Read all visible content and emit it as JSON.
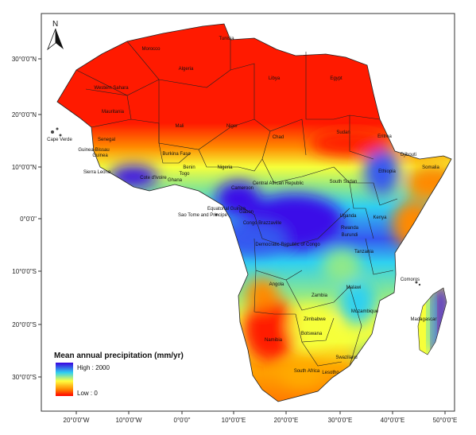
{
  "legend": {
    "title": "Mean annual precipitation (mm/yr)",
    "high_label": "High : 2000",
    "low_label": "Low : 0",
    "gradient_colors": [
      "#3a00e0",
      "#2fd0f0",
      "#ffff40",
      "#ff8800",
      "#ff0000"
    ]
  },
  "north_arrow": {
    "letter": "N"
  },
  "lat_labels": [
    "30°0'0\"N",
    "20°0'0\"N",
    "10°0'0\"N",
    "0°0'0\"",
    "10°0'0\"S",
    "20°0'0\"S",
    "30°0'0\"S"
  ],
  "lon_labels": [
    "20°0'0\"W",
    "10°0'0\"W",
    "0°0'0\"",
    "10°0'0\"E",
    "20°0'0\"E",
    "30°0'0\"E",
    "40°0'0\"E",
    "50°0'0\"E"
  ],
  "countries": [
    "Tunisia",
    "Morocco",
    "Algeria",
    "Libya",
    "Egypt",
    "Western Sahara",
    "Mauritania",
    "Mali",
    "Niger",
    "Chad",
    "Sudan",
    "Eritrea",
    "Djibouti",
    "Cape Verde",
    "Senegal",
    "Guinea-Bissau",
    "Guinea",
    "Sierra Leone",
    "Burkina Faso",
    "Benin",
    "Togo",
    "Ghana",
    "Cote d'Ivoire",
    "Nigeria",
    "Ethiopia",
    "Somalia",
    "Cameroon",
    "Central African Republic",
    "South Sudan",
    "Equatorial Guinea",
    "Gabon",
    "Sao Tome and Principe",
    "Congo Brazzaville",
    "Uganda",
    "Kenya",
    "Rwanda",
    "Burundi",
    "Democratic Republic of Congo",
    "Tanzania",
    "Comoros",
    "Angola",
    "Zambia",
    "Malawi",
    "Mozambique",
    "Zimbabwe",
    "Madagascar",
    "Namibia",
    "Botswana",
    "Swaziland",
    "South Africa",
    "Lesotho"
  ],
  "colors": {
    "arid": "#ff1a00",
    "orange": "#ff8a00",
    "yellow": "#f6ff3a",
    "green": "#8fe88a",
    "cyan": "#2fd0f0",
    "blue": "#3558f0",
    "indigo": "#3b0ae8",
    "border": "#222222"
  }
}
